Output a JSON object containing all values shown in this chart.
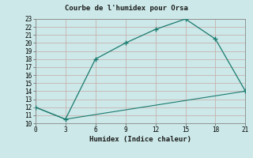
{
  "title": "Courbe de l'humidex pour Orsa",
  "xlabel": "Humidex (Indice chaleur)",
  "line1_x": [
    0,
    3,
    6,
    9,
    12,
    15,
    18,
    21
  ],
  "line1_y": [
    12,
    10.5,
    18,
    20,
    21.7,
    23,
    20.5,
    14
  ],
  "line2_x": [
    0,
    3,
    21
  ],
  "line2_y": [
    12,
    10.5,
    14
  ],
  "line_color": "#1a7a6e",
  "bg_color": "#cce8e8",
  "grid_color": "#b0d0d0",
  "xlim": [
    0,
    21
  ],
  "ylim": [
    10,
    23
  ],
  "xticks": [
    0,
    3,
    6,
    9,
    12,
    15,
    18,
    21
  ],
  "yticks": [
    10,
    11,
    12,
    13,
    14,
    15,
    16,
    17,
    18,
    19,
    20,
    21,
    22,
    23
  ],
  "marker": "+"
}
